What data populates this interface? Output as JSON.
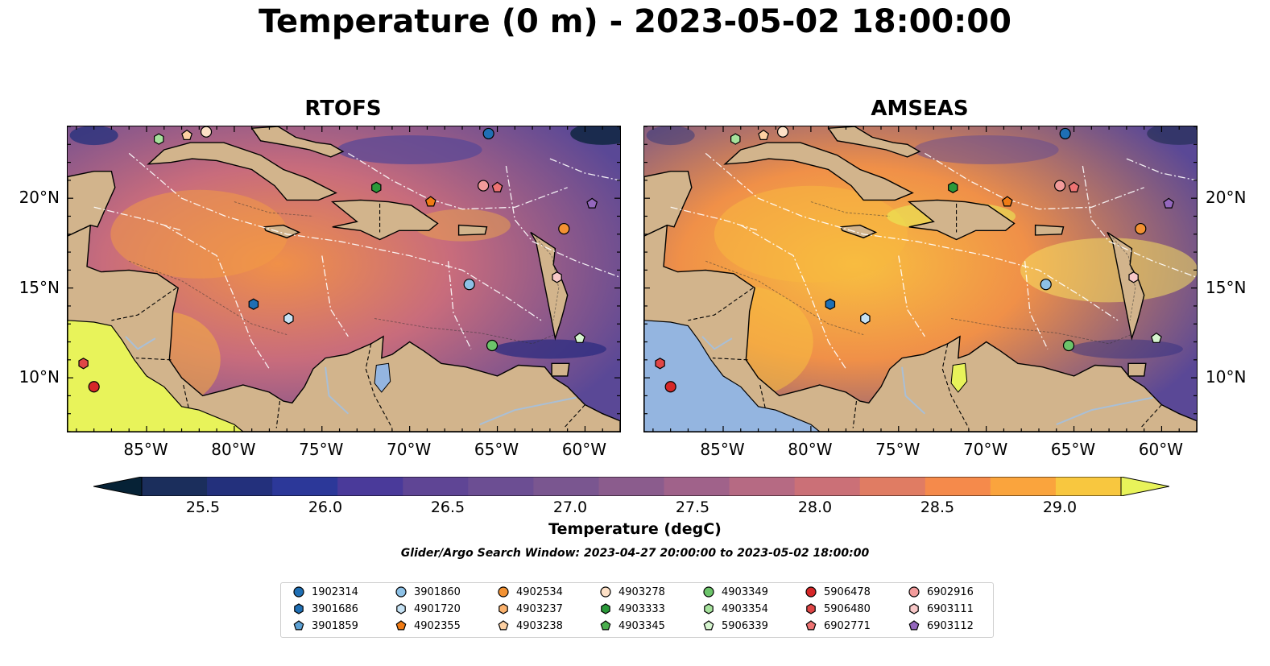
{
  "figure": {
    "title": "Temperature (0 m) - 2023-05-02 18:00:00",
    "panels": [
      {
        "id": "rtofs",
        "title": "RTOFS",
        "land_sea_color": "#e8f35a"
      },
      {
        "id": "amseas",
        "title": "AMSEAS",
        "land_sea_color": "#94b5e0"
      }
    ],
    "lon_ticks": [
      "85°W",
      "80°W",
      "75°W",
      "70°W",
      "65°W",
      "60°W"
    ],
    "lat_ticks": [
      "20°N",
      "15°N",
      "10°N"
    ],
    "search_window": "Glider/Argo Search Window: 2023-04-27 20:00:00 to 2023-05-02 18:00:00"
  },
  "colorbar": {
    "label": "Temperature (degC)",
    "min": 25.25,
    "max": 29.25,
    "extend": "both",
    "ticks": [
      "25.5",
      "26.0",
      "26.5",
      "27.0",
      "27.5",
      "28.0",
      "28.5",
      "29.0"
    ],
    "colors": [
      "#062236",
      "#1b2e5c",
      "#23307c",
      "#2c3899",
      "#4a3a9a",
      "#5f4595",
      "#6c4e93",
      "#7a5690",
      "#8b5c8d",
      "#a0628a",
      "#b66a83",
      "#cb7077",
      "#e07c63",
      "#f58a4b",
      "#faa43d",
      "#f8c73f",
      "#e8f35a"
    ]
  },
  "colors": {
    "land": "#d2b48c",
    "water_deep": "#5a4896",
    "water_warm": "#f09048",
    "water_hot": "#f8c040",
    "river": "#a9bfd6"
  },
  "legend": {
    "entries": [
      {
        "id": "1902314",
        "marker": "circle",
        "color": "#1f6fb4"
      },
      {
        "id": "3901686",
        "marker": "hexagon",
        "color": "#1f6fb4"
      },
      {
        "id": "3901859",
        "marker": "pentagon",
        "color": "#5ca0d3"
      },
      {
        "id": "3901860",
        "marker": "circle",
        "color": "#8dc1e6"
      },
      {
        "id": "4901720",
        "marker": "hexagon",
        "color": "#c6e2f4"
      },
      {
        "id": "4902355",
        "marker": "pentagon",
        "color": "#f07b15"
      },
      {
        "id": "4902534",
        "marker": "circle",
        "color": "#f39233"
      },
      {
        "id": "4903237",
        "marker": "hexagon",
        "color": "#fbb26d"
      },
      {
        "id": "4903238",
        "marker": "pentagon",
        "color": "#fdd0a2"
      },
      {
        "id": "4903278",
        "marker": "circle",
        "color": "#fde0c6"
      },
      {
        "id": "4903333",
        "marker": "hexagon",
        "color": "#2b9a3a"
      },
      {
        "id": "4903345",
        "marker": "pentagon",
        "color": "#4caf4f"
      },
      {
        "id": "4903349",
        "marker": "circle",
        "color": "#6cc46a"
      },
      {
        "id": "4903354",
        "marker": "hexagon",
        "color": "#a6e29c"
      },
      {
        "id": "5906339",
        "marker": "pentagon",
        "color": "#d6f5cf"
      },
      {
        "id": "5906478",
        "marker": "circle",
        "color": "#d62728"
      },
      {
        "id": "5906480",
        "marker": "hexagon",
        "color": "#e04646"
      },
      {
        "id": "6902771",
        "marker": "pentagon",
        "color": "#ee7373"
      },
      {
        "id": "6902916",
        "marker": "circle",
        "color": "#f29b9b"
      },
      {
        "id": "6903111",
        "marker": "hexagon",
        "color": "#f8c8c8"
      },
      {
        "id": "6903112",
        "marker": "pentagon",
        "color": "#9467bd"
      }
    ]
  },
  "floats_on_map": [
    {
      "id": "4903354",
      "lon": -84.3,
      "lat": 23.3
    },
    {
      "id": "4903238",
      "lon": -82.7,
      "lat": 23.5
    },
    {
      "id": "4903278",
      "lon": -81.6,
      "lat": 23.7
    },
    {
      "id": "1902314",
      "lon": -65.5,
      "lat": 23.6
    },
    {
      "id": "4903333",
      "lon": -71.9,
      "lat": 20.6
    },
    {
      "id": "4902355",
      "lon": -68.8,
      "lat": 19.8
    },
    {
      "id": "6902916",
      "lon": -65.8,
      "lat": 20.7
    },
    {
      "id": "6902771",
      "lon": -65.0,
      "lat": 20.6
    },
    {
      "id": "6903112",
      "lon": -59.6,
      "lat": 19.7
    },
    {
      "id": "4902534",
      "lon": -61.2,
      "lat": 18.3
    },
    {
      "id": "3901860",
      "lon": -66.6,
      "lat": 15.2
    },
    {
      "id": "6903111",
      "lon": -61.6,
      "lat": 15.6
    },
    {
      "id": "3901686",
      "lon": -78.9,
      "lat": 14.1
    },
    {
      "id": "4901720",
      "lon": -76.9,
      "lat": 13.3
    },
    {
      "id": "5906339",
      "lon": -60.3,
      "lat": 12.2
    },
    {
      "id": "4903349",
      "lon": -65.3,
      "lat": 11.8
    },
    {
      "id": "5906480",
      "lon": -88.6,
      "lat": 10.8
    },
    {
      "id": "5906478",
      "lon": -88.0,
      "lat": 9.5
    }
  ]
}
